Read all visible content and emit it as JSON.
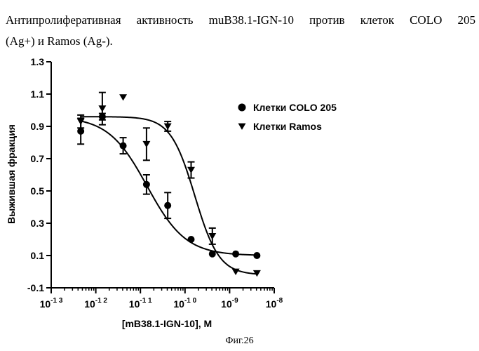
{
  "caption": {
    "line1": "Антипролиферативная активность muB38.1-IGN-10 против клеток COLO 205",
    "line2": "(Ag+) и Ramos (Ag-)."
  },
  "figure_label": "Фиг.26",
  "chart_data": {
    "type": "scatter",
    "xlabel": "[mB38.1-IGN-10], M",
    "ylabel": "Выжившая фракция",
    "xscale": "log",
    "xlim_exp": [
      -13,
      -8
    ],
    "ylim": [
      -0.1,
      1.3
    ],
    "y_ticks": [
      -0.1,
      0.1,
      0.3,
      0.5,
      0.7,
      0.9,
      1.1,
      1.3
    ],
    "y_tick_labels": [
      "-0.1",
      "0.1",
      "0.3",
      "0.5",
      "0.7",
      "0.9",
      "1.1",
      "1.3"
    ],
    "x_ticks_exp": [
      -13,
      -12,
      -11,
      -10,
      -9,
      -8
    ],
    "x_tick_labels": [
      {
        "base": "10",
        "exp": "-1 3"
      },
      {
        "base": "10",
        "exp": "-1 2"
      },
      {
        "base": "10",
        "exp": "-1 1"
      },
      {
        "base": "10",
        "exp": "-1 0"
      },
      {
        "base": "10",
        "exp": "-9"
      },
      {
        "base": "10",
        "exp": "-8"
      }
    ],
    "legend_position": "top-right",
    "series": [
      {
        "name": "Клетки COLO 205",
        "marker": "circle",
        "x": [
          4.6e-13,
          1.4e-12,
          4.1e-12,
          1.37e-11,
          4.1e-11,
          1.37e-10,
          4.1e-10,
          1.37e-09,
          4.1e-09
        ],
        "y": [
          0.87,
          0.96,
          0.78,
          0.54,
          0.41,
          0.2,
          0.11,
          0.11,
          0.1
        ],
        "err": [
          0.08,
          0.02,
          0.05,
          0.06,
          0.08,
          0.0,
          0.0,
          0.0,
          0.0
        ],
        "fit": {
          "bottom": 0.1,
          "top": 0.96,
          "logEC50": -10.85,
          "hill": 1.0
        }
      },
      {
        "name": "Клетки Ramos",
        "marker": "triangle-down",
        "x": [
          4.6e-13,
          1.4e-12,
          4.1e-12,
          1.37e-11,
          4.1e-11,
          1.37e-10,
          4.1e-10,
          1.37e-09,
          4.1e-09
        ],
        "y": [
          0.93,
          1.01,
          1.08,
          0.79,
          0.9,
          0.63,
          0.22,
          0.0,
          -0.01
        ],
        "err": [
          0.04,
          0.1,
          0.0,
          0.1,
          0.03,
          0.05,
          0.05,
          0.0,
          0.0
        ],
        "fit": {
          "bottom": -0.02,
          "top": 0.96,
          "logEC50": -9.78,
          "hill": 1.6
        }
      }
    ]
  }
}
